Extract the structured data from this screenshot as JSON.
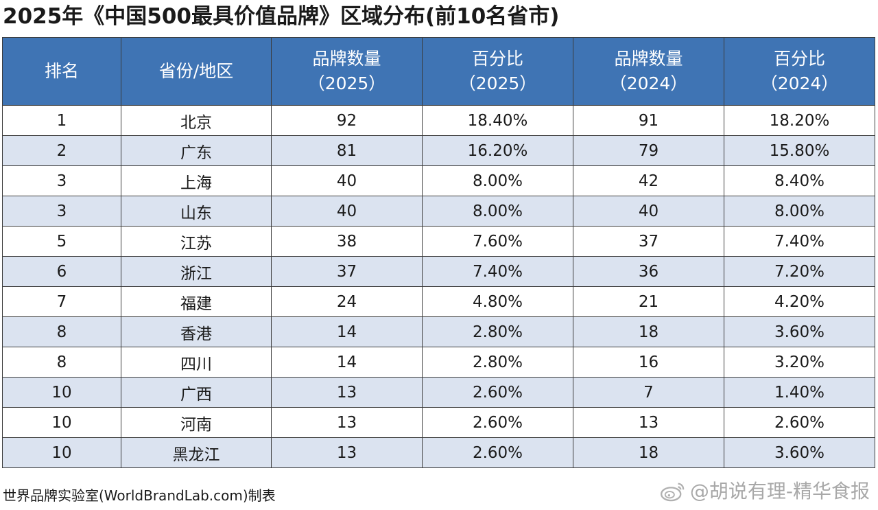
{
  "title": "2025年《中国500最具价值品牌》区域分布(前10名省市)",
  "table": {
    "headers": [
      {
        "line1": "排名",
        "line2": ""
      },
      {
        "line1": "省份/地区",
        "line2": ""
      },
      {
        "line1": "品牌数量",
        "line2": "（2025）"
      },
      {
        "line1": "百分比",
        "line2": "（2025）"
      },
      {
        "line1": "品牌数量",
        "line2": "（2024）"
      },
      {
        "line1": "百分比",
        "line2": "（2024）"
      }
    ],
    "rows": [
      [
        "1",
        "北京",
        "92",
        "18.40%",
        "91",
        "18.20%"
      ],
      [
        "2",
        "广东",
        "81",
        "16.20%",
        "79",
        "15.80%"
      ],
      [
        "3",
        "上海",
        "40",
        "8.00%",
        "42",
        "8.40%"
      ],
      [
        "3",
        "山东",
        "40",
        "8.00%",
        "40",
        "8.00%"
      ],
      [
        "5",
        "江苏",
        "38",
        "7.60%",
        "37",
        "7.40%"
      ],
      [
        "6",
        "浙江",
        "37",
        "7.40%",
        "36",
        "7.20%"
      ],
      [
        "7",
        "福建",
        "24",
        "4.80%",
        "21",
        "4.20%"
      ],
      [
        "8",
        "香港",
        "14",
        "2.80%",
        "18",
        "3.60%"
      ],
      [
        "8",
        "四川",
        "14",
        "2.80%",
        "16",
        "3.20%"
      ],
      [
        "10",
        "广西",
        "13",
        "2.60%",
        "7",
        "1.40%"
      ],
      [
        "10",
        "河南",
        "13",
        "2.60%",
        "13",
        "2.60%"
      ],
      [
        "10",
        "黑龙江",
        "13",
        "2.60%",
        "18",
        "3.60%"
      ]
    ]
  },
  "footer": "世界品牌实验室(WorldBrandLab.com)制表",
  "watermark": "@胡说有理-精华食报",
  "colors": {
    "header_bg": "#3f74b4",
    "stripe": "#dbe3f0"
  },
  "icons": {
    "watermark": "weibo-icon"
  }
}
